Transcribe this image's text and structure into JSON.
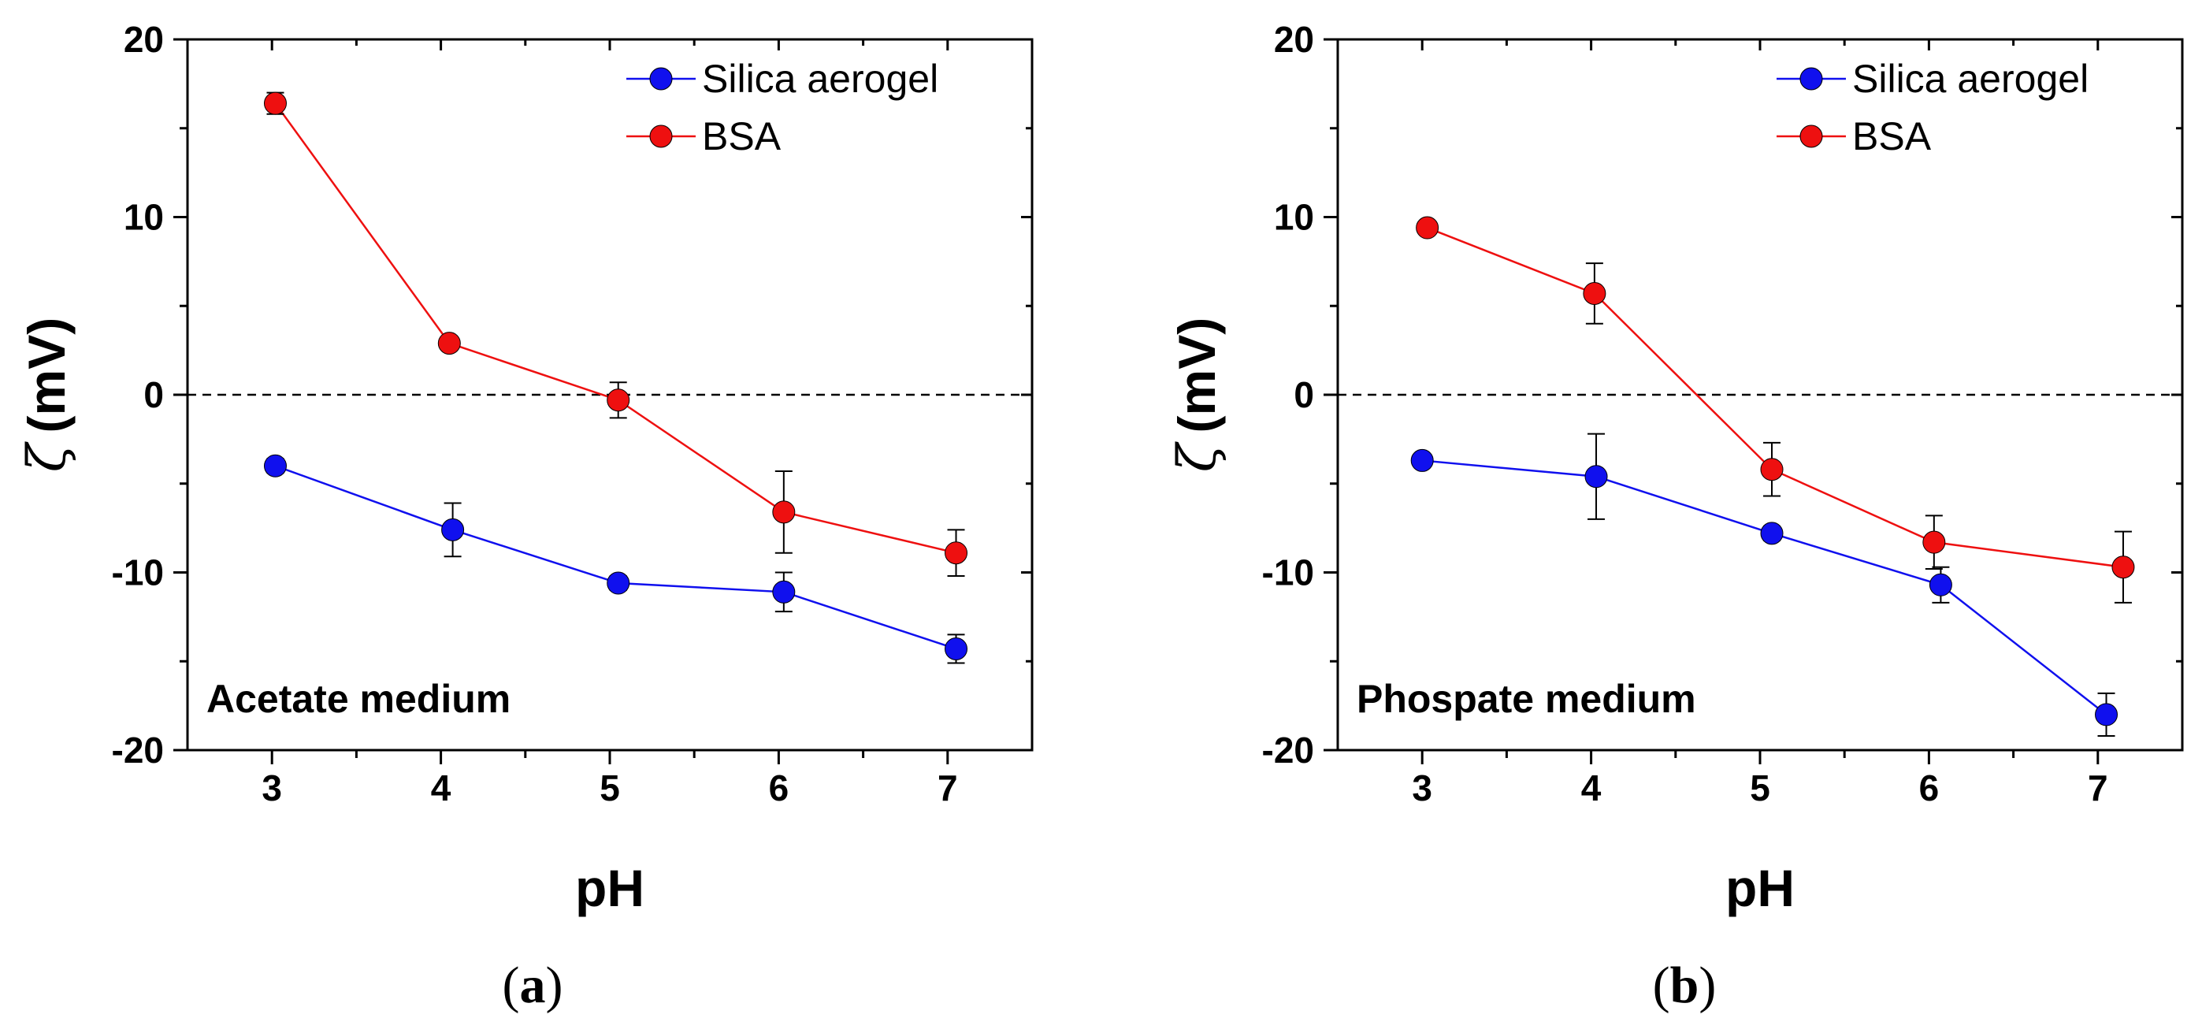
{
  "chart_data": [
    {
      "type": "line",
      "panel_label": "a",
      "annotation": "Acetate medium",
      "xlabel": "pH",
      "ylabel_symbol": "ζ",
      "ylabel_unit": "(mV)",
      "xlim": [
        2.5,
        7.5
      ],
      "ylim": [
        -20,
        20
      ],
      "xticks": [
        3,
        4,
        5,
        6,
        7
      ],
      "yticks": [
        -20,
        -10,
        0,
        10,
        20
      ],
      "reference_line_y": 0,
      "legend_position": "top-right",
      "series": [
        {
          "name": "Silica aerogel",
          "color": "#1010ee",
          "x": [
            3.02,
            4.07,
            5.05,
            6.03,
            7.05
          ],
          "y": [
            -4.0,
            -7.6,
            -10.6,
            -11.1,
            -14.3
          ],
          "err": [
            0.4,
            1.5,
            0.4,
            1.1,
            0.8
          ]
        },
        {
          "name": "BSA",
          "color": "#ee1010",
          "x": [
            3.02,
            4.05,
            5.05,
            6.03,
            7.05
          ],
          "y": [
            16.4,
            2.9,
            -0.3,
            -6.6,
            -8.9
          ],
          "err": [
            0.6,
            0.3,
            1.0,
            2.3,
            1.3
          ]
        }
      ]
    },
    {
      "type": "line",
      "panel_label": "b",
      "annotation": "Phospate medium",
      "xlabel": "pH",
      "ylabel_symbol": "ζ",
      "ylabel_unit": "(mV)",
      "xlim": [
        2.5,
        7.5
      ],
      "ylim": [
        -20,
        20
      ],
      "xticks": [
        3,
        4,
        5,
        6,
        7
      ],
      "yticks": [
        -20,
        -10,
        0,
        10,
        20
      ],
      "reference_line_y": 0,
      "legend_position": "top-right",
      "series": [
        {
          "name": "Silica aerogel",
          "color": "#1010ee",
          "x": [
            3.0,
            4.03,
            5.07,
            6.07,
            7.05
          ],
          "y": [
            -3.7,
            -4.6,
            -7.8,
            -10.7,
            -18.0
          ],
          "err": [
            0.3,
            2.4,
            0.4,
            1.0,
            1.2
          ]
        },
        {
          "name": "BSA",
          "color": "#ee1010",
          "x": [
            3.03,
            4.02,
            5.07,
            6.03,
            7.15
          ],
          "y": [
            9.4,
            5.7,
            -4.2,
            -8.3,
            -9.7
          ],
          "err": [
            0.3,
            1.7,
            1.5,
            1.5,
            2.0
          ]
        }
      ]
    }
  ]
}
